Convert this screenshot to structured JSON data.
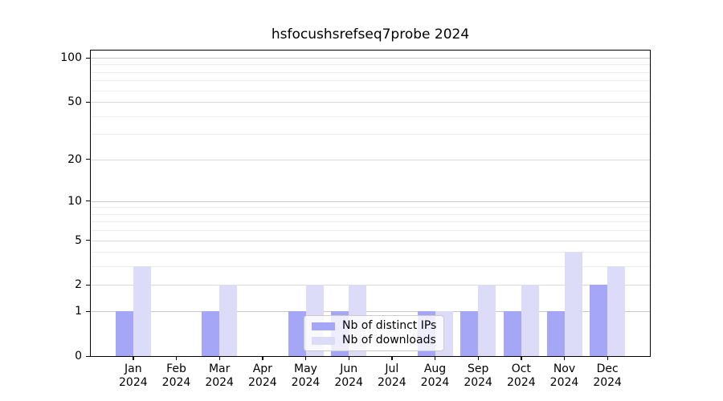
{
  "title": "hsfocushsrefseq7probe 2024",
  "chart_data": {
    "type": "bar",
    "title": "hsfocushsrefseq7probe 2024",
    "categories": [
      "Jan",
      "Feb",
      "Mar",
      "Apr",
      "May",
      "Jun",
      "Jul",
      "Aug",
      "Sep",
      "Oct",
      "Nov",
      "Dec"
    ],
    "year_label": "2024",
    "series": [
      {
        "name": "Nb of distinct IPs",
        "key": "distinct-ips",
        "color": "#a6a6f7",
        "values": [
          1,
          0,
          1,
          0,
          1,
          1,
          0,
          1,
          1,
          1,
          1,
          2
        ]
      },
      {
        "name": "Nb of downloads",
        "key": "downloads",
        "color": "#dcdcf9",
        "values": [
          3,
          0,
          2,
          0,
          2,
          2,
          0,
          1,
          2,
          2,
          4,
          3
        ]
      }
    ],
    "xlabel": "",
    "ylabel": "",
    "yscale": "log1p",
    "ylim": [
      0,
      112
    ],
    "yticks_major": [
      0,
      1,
      2,
      5,
      10,
      20,
      50,
      100
    ],
    "yticks_minor": [
      3,
      4,
      6,
      7,
      8,
      9,
      30,
      40,
      60,
      70,
      80,
      90
    ],
    "grid": true,
    "legend_position": "lower center"
  }
}
